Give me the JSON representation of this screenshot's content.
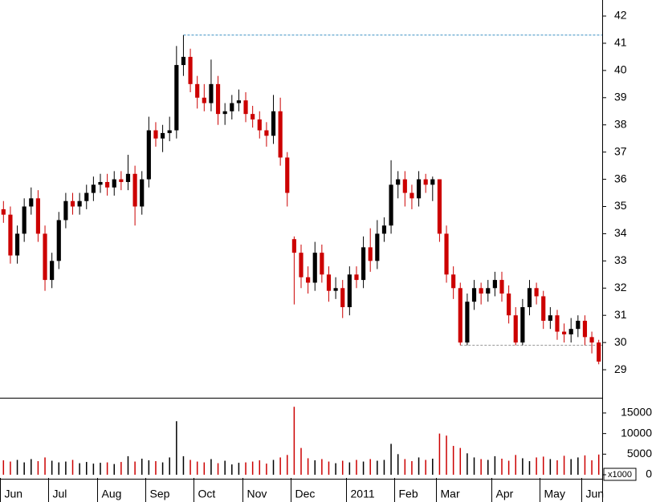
{
  "chart_data": {
    "type": "candlestick",
    "categories": [
      "Jun",
      null,
      null,
      null,
      null,
      null,
      null,
      "Jul",
      null,
      null,
      null,
      null,
      null,
      null,
      "Aug",
      null,
      null,
      null,
      null,
      null,
      null,
      "Sep",
      null,
      null,
      null,
      null,
      null,
      null,
      "Oct",
      null,
      null,
      null,
      null,
      null,
      null,
      "Nov",
      null,
      null,
      null,
      null,
      null,
      null,
      "Dec",
      null,
      null,
      null,
      null,
      null,
      null,
      null,
      "2011",
      null,
      null,
      null,
      null,
      null,
      null,
      "Feb",
      null,
      null,
      null,
      null,
      null,
      "Mar",
      null,
      null,
      null,
      null,
      null,
      null,
      null,
      "Apr",
      null,
      null,
      null,
      null,
      null,
      null,
      "May",
      null,
      null,
      null,
      null,
      null,
      "Jun",
      null,
      null
    ],
    "open": [
      34.9,
      34.7,
      33.2,
      34.0,
      35.0,
      35.3,
      34.0,
      32.3,
      33.0,
      34.5,
      35.2,
      35.0,
      35.2,
      35.5,
      35.8,
      35.9,
      35.7,
      36.0,
      35.9,
      36.2,
      35.0,
      36.0,
      37.8,
      37.5,
      37.7,
      37.8,
      40.2,
      40.5,
      39.5,
      39.0,
      38.8,
      39.5,
      38.4,
      38.5,
      38.8,
      38.9,
      38.4,
      38.2,
      37.8,
      37.6,
      38.5,
      36.8,
      33.8,
      33.3,
      32.4,
      32.2,
      33.3,
      32.5,
      31.9,
      32.0,
      31.3,
      32.5,
      32.3,
      33.5,
      33.0,
      34.0,
      34.3,
      35.8,
      36.0,
      35.5,
      35.3,
      36.0,
      35.8,
      36.0,
      34.0,
      32.5,
      32.0,
      30.0,
      31.5,
      32.0,
      31.8,
      32.0,
      32.3,
      31.8,
      31.0,
      30.0,
      31.3,
      32.0,
      31.7,
      30.8,
      31.0,
      30.4,
      30.3,
      30.5,
      30.8,
      30.2,
      30.0
    ],
    "high": [
      35.2,
      35.0,
      34.3,
      35.3,
      35.7,
      35.6,
      34.3,
      33.3,
      34.8,
      35.5,
      35.5,
      35.5,
      35.8,
      36.1,
      36.2,
      36.2,
      36.3,
      36.3,
      36.9,
      36.5,
      36.3,
      38.3,
      38.1,
      38.0,
      38.3,
      40.9,
      41.3,
      40.8,
      39.8,
      39.5,
      40.4,
      39.8,
      38.8,
      39.1,
      39.3,
      39.2,
      38.7,
      38.5,
      38.1,
      39.1,
      39.0,
      37.0,
      33.9,
      33.6,
      32.8,
      33.7,
      33.6,
      32.8,
      32.4,
      32.3,
      32.8,
      32.8,
      33.9,
      34.2,
      34.5,
      34.6,
      36.7,
      36.3,
      36.3,
      35.8,
      36.3,
      36.2,
      36.1,
      36.0,
      34.3,
      32.8,
      32.2,
      31.8,
      32.3,
      32.2,
      32.3,
      32.6,
      32.6,
      32.1,
      31.3,
      31.6,
      32.3,
      32.2,
      31.9,
      31.3,
      31.2,
      30.7,
      30.9,
      31.0,
      31.0,
      30.4,
      30.1
    ],
    "low": [
      34.4,
      32.9,
      32.9,
      33.7,
      34.7,
      33.7,
      31.9,
      32.0,
      32.7,
      34.2,
      34.7,
      34.7,
      34.9,
      35.2,
      35.5,
      35.4,
      35.4,
      35.6,
      35.6,
      34.3,
      34.7,
      35.7,
      37.2,
      37.0,
      37.4,
      37.5,
      39.8,
      39.2,
      38.6,
      38.5,
      38.5,
      38.0,
      38.0,
      38.2,
      38.5,
      38.1,
      37.9,
      37.5,
      37.2,
      37.3,
      36.5,
      35.0,
      31.4,
      32.0,
      31.8,
      31.9,
      32.2,
      31.5,
      31.6,
      30.9,
      31.0,
      32.0,
      32.0,
      32.6,
      32.7,
      33.7,
      34.0,
      35.3,
      35.0,
      34.9,
      35.0,
      35.5,
      35.2,
      33.7,
      32.2,
      31.6,
      29.9,
      29.9,
      31.2,
      31.4,
      31.5,
      31.7,
      31.5,
      30.7,
      29.9,
      29.9,
      31.0,
      31.4,
      30.5,
      30.5,
      30.1,
      30.0,
      30.0,
      30.2,
      29.9,
      29.6,
      29.2
    ],
    "close": [
      34.7,
      33.2,
      34.0,
      35.0,
      35.3,
      34.0,
      32.3,
      33.0,
      34.5,
      35.2,
      35.0,
      35.2,
      35.5,
      35.8,
      35.9,
      35.7,
      36.0,
      35.9,
      36.2,
      35.0,
      36.0,
      37.8,
      37.5,
      37.7,
      37.8,
      40.2,
      40.5,
      39.5,
      39.0,
      38.8,
      39.5,
      38.4,
      38.5,
      38.8,
      38.9,
      38.4,
      38.2,
      37.8,
      37.6,
      38.5,
      36.8,
      35.5,
      33.3,
      32.4,
      32.2,
      33.3,
      32.5,
      31.9,
      32.0,
      31.3,
      32.5,
      32.3,
      33.5,
      33.0,
      34.0,
      34.3,
      35.8,
      36.0,
      35.5,
      35.3,
      36.0,
      35.8,
      36.0,
      34.0,
      32.5,
      32.0,
      30.0,
      31.5,
      32.0,
      31.8,
      32.0,
      32.3,
      31.8,
      31.0,
      30.0,
      31.3,
      32.0,
      31.7,
      30.8,
      31.0,
      30.4,
      30.3,
      30.5,
      30.8,
      30.2,
      30.0,
      29.3
    ],
    "volume": [
      3500,
      3200,
      3600,
      3000,
      3800,
      3300,
      4200,
      3400,
      3000,
      3200,
      3600,
      2800,
      3100,
      2700,
      2900,
      3000,
      2600,
      3100,
      4500,
      3200,
      3900,
      3500,
      3300,
      3000,
      4200,
      13000,
      4500,
      3600,
      3200,
      3000,
      3800,
      2800,
      3400,
      2500,
      2900,
      3000,
      3200,
      3500,
      2700,
      3600,
      4200,
      4800,
      16500,
      6500,
      4000,
      3500,
      3800,
      3200,
      2800,
      3400,
      3000,
      3600,
      3200,
      3800,
      3400,
      3600,
      7500,
      5000,
      3800,
      3300,
      4200,
      3600,
      3900,
      10000,
      9500,
      7000,
      6500,
      5200,
      4200,
      3800,
      3600,
      4500,
      3900,
      3400,
      4800,
      4000,
      3300,
      4200,
      4400,
      3800,
      3500,
      4600,
      3800,
      4200,
      4700,
      3500,
      4900
    ],
    "ylim": [
      27.97,
      42.59
    ],
    "yticks": [
      29,
      30,
      31,
      32,
      33,
      34,
      35,
      36,
      37,
      38,
      39,
      40,
      41,
      42
    ],
    "volume_ylim": [
      -780,
      18500
    ],
    "volume_yticks": [
      0,
      5000,
      10000,
      15000
    ],
    "volume_unit_label": "x1000",
    "up_color": "#000000",
    "down_color": "#cc0000",
    "reference_lines": [
      {
        "value": 41.3,
        "color": "#3a8fc4"
      },
      {
        "value": 29.9,
        "color": "#999999"
      }
    ]
  }
}
